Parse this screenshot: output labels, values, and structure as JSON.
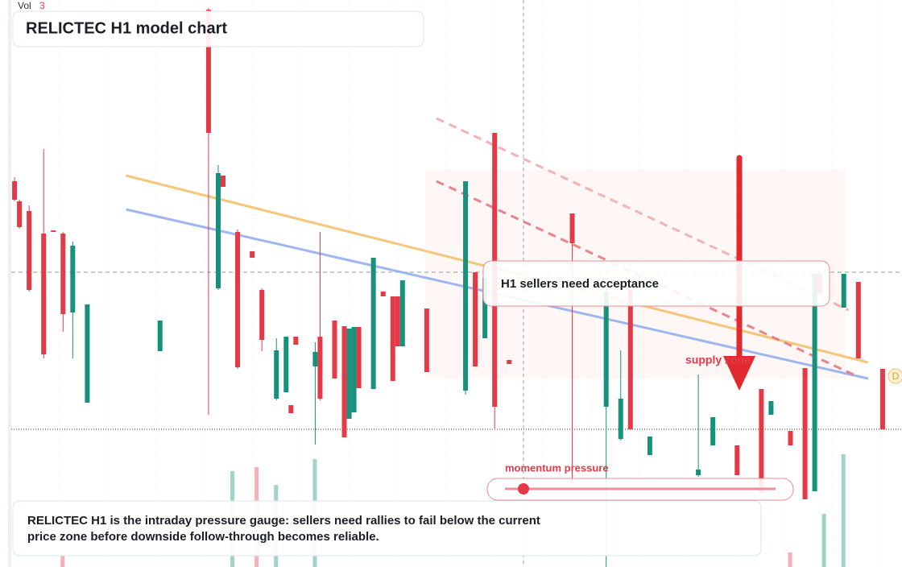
{
  "chart_data": {
    "type": "candlestick",
    "title": "RELICTEC H1 model chart",
    "volume_label": "Vol",
    "volume_value": "3",
    "callout": "H1 sellers need acceptance",
    "zone_label": "supply zone",
    "gauge_label": "momentum pressure",
    "badge": "D",
    "description": "RELICTEC H1 is the intraday pressure gauge: sellers need rallies to fail below the current price zone before downside follow-through becomes reliable.",
    "up_color": "#17917c",
    "down_color": "#e33a48",
    "xlim": [
      0,
      186
    ],
    "ylim": [
      0,
      704
    ],
    "x": [
      3,
      4,
      6,
      9,
      11,
      13,
      15,
      18,
      33,
      43,
      45,
      46,
      49,
      52,
      54,
      57,
      59,
      60,
      61,
      65,
      66,
      69,
      71,
      72,
      73,
      74,
      77,
      79,
      81,
      82,
      83,
      88,
      96,
      98,
      100,
      102,
      105,
      118,
      125,
      128,
      130,
      134,
      144,
      147,
      152,
      157,
      159,
      163,
      166,
      168,
      169,
      174,
      177,
      182
    ],
    "open": [
      479,
      454,
      442,
      414,
      418,
      414,
      316,
      204,
      268,
      692,
      346,
      486,
      416,
      392,
      344,
      209,
      217,
      201,
      286,
      249,
      286,
      306,
      299,
      184,
      192,
      298,
      221,
      342,
      336,
      336,
      274,
      321,
      219,
      366,
      284,
      539,
      257,
      439,
      199,
      159,
      344,
      139,
      114,
      151,
      151,
      221,
      189,
      169,
      247,
      94,
      364,
      322,
      354,
      246
    ],
    "high": [
      484,
      456,
      449,
      519,
      418,
      416,
      404,
      326,
      306,
      694,
      499,
      486,
      419,
      392,
      346,
      284,
      286,
      201,
      286,
      279,
      416,
      306,
      299,
      296,
      298,
      298,
      384,
      342,
      336,
      336,
      356,
      321,
      479,
      366,
      359,
      539,
      257,
      439,
      344,
      269,
      344,
      162,
      239,
      186,
      151,
      221,
      206,
      169,
      247,
      364,
      364,
      364,
      354,
      246
    ],
    "low": [
      454,
      420,
      342,
      259,
      416,
      292,
      259,
      204,
      268,
      189,
      344,
      472,
      246,
      384,
      268,
      207,
      217,
      191,
      276,
      152,
      207,
      234,
      161,
      184,
      192,
      222,
      221,
      336,
      231,
      274,
      274,
      242,
      214,
      249,
      284,
      172,
      252,
      104,
      0,
      157,
      171,
      139,
      112,
      151,
      114,
      92,
      189,
      151,
      84,
      94,
      339,
      322,
      259,
      171
    ],
    "close": [
      456,
      422,
      344,
      264,
      416,
      314,
      399,
      326,
      306,
      539,
      489,
      472,
      248,
      384,
      282,
      269,
      286,
      191,
      276,
      267,
      209,
      234,
      161,
      296,
      298,
      222,
      384,
      336,
      231,
      274,
      356,
      242,
      479,
      249,
      359,
      199,
      252,
      402,
      342,
      209,
      171,
      162,
      121,
      186,
      114,
      92,
      206,
      151,
      84,
      364,
      339,
      364,
      259,
      171
    ],
    "volume": {
      "x": [
        13,
        48,
        53,
        57,
        65,
        163,
        170,
        174
      ],
      "values": [
        14,
        119,
        124,
        102,
        134,
        18,
        66,
        140
      ],
      "up": [
        false,
        true,
        false,
        true,
        true,
        false,
        true,
        true
      ],
      "vlim": [
        0,
        704
      ]
    },
    "trendlines": [
      {
        "color": "#f5c06a",
        "dash": false,
        "x": [
          26,
          179
        ],
        "y": [
          486,
          254
        ]
      },
      {
        "color": "#93aef0",
        "dash": false,
        "x": [
          26,
          179
        ],
        "y": [
          444,
          234
        ]
      },
      {
        "color": "#e8777f",
        "dash": true,
        "x": [
          90,
          176
        ],
        "y": [
          479,
          239
        ]
      },
      {
        "color": "#f2aaae",
        "dash": true,
        "x": [
          90,
          175
        ],
        "y": [
          557,
          319
        ]
      }
    ],
    "levels": [
      366,
      171
    ]
  }
}
